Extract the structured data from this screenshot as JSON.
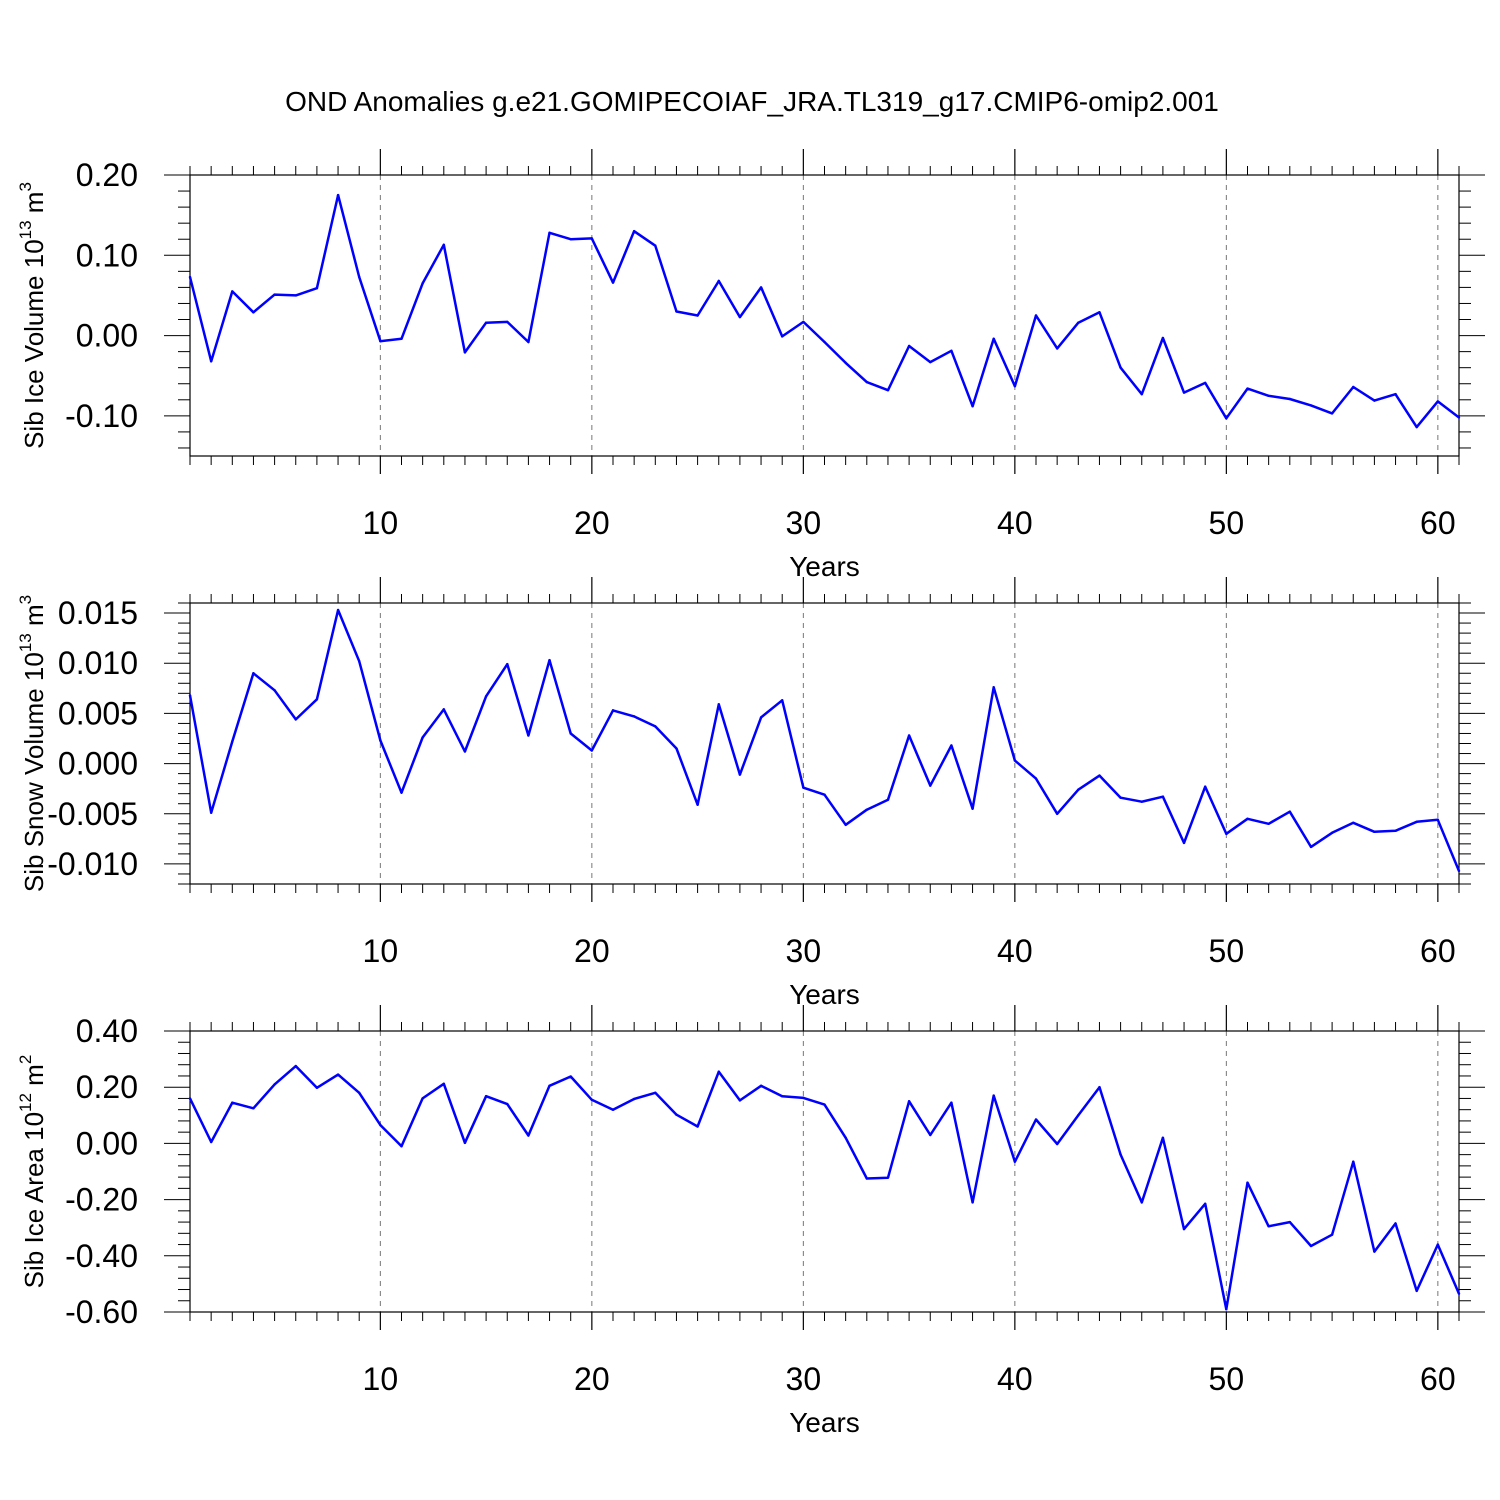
{
  "title": "OND Anomalies g.e21.GOMIPECOIAF_JRA.TL319_g17.CMIP6-omip2.001",
  "line_color": "#0000ff",
  "chart_data": [
    {
      "type": "line",
      "ylabel": "Sib Ice Volume 10",
      "ylabel_exp": "13",
      "ylabel_unit": " m",
      "ylabel_unit_exp": "3",
      "xlabel": "Years",
      "xlim": [
        1,
        61
      ],
      "ylim": [
        -0.15,
        0.2
      ],
      "xticks": [
        10,
        20,
        30,
        40,
        50,
        60
      ],
      "yticks": [
        -0.1,
        0.0,
        0.1,
        0.2
      ],
      "ytick_labels": [
        "-0.10",
        "0.00",
        "0.10",
        "0.20"
      ],
      "grid": "vertical-dashed",
      "x": [
        1,
        2,
        3,
        4,
        5,
        6,
        7,
        8,
        9,
        10,
        11,
        12,
        13,
        14,
        15,
        16,
        17,
        18,
        19,
        20,
        21,
        22,
        23,
        24,
        25,
        26,
        27,
        28,
        29,
        30,
        31,
        32,
        33,
        34,
        35,
        36,
        37,
        38,
        39,
        40,
        41,
        42,
        43,
        44,
        45,
        46,
        47,
        48,
        49,
        50,
        51,
        52,
        53,
        54,
        55,
        56,
        57,
        58,
        59,
        60,
        61
      ],
      "values": [
        0.073,
        -0.032,
        0.055,
        0.029,
        0.051,
        0.05,
        0.059,
        0.175,
        0.073,
        -0.007,
        -0.004,
        0.065,
        0.113,
        -0.021,
        0.016,
        0.017,
        -0.008,
        0.128,
        0.12,
        0.121,
        0.066,
        0.13,
        0.112,
        0.03,
        0.025,
        0.068,
        0.023,
        0.06,
        -0.001,
        0.017,
        -0.008,
        -0.034,
        -0.058,
        -0.068,
        -0.013,
        -0.033,
        -0.019,
        -0.088,
        -0.004,
        -0.063,
        0.025,
        -0.016,
        0.016,
        0.029,
        -0.04,
        -0.073,
        -0.003,
        -0.071,
        -0.059,
        -0.103,
        -0.066,
        -0.075,
        -0.079,
        -0.087,
        -0.097,
        -0.064,
        -0.081,
        -0.073,
        -0.114,
        -0.082,
        -0.102
      ]
    },
    {
      "type": "line",
      "ylabel": "Sib Snow Volume 10",
      "ylabel_exp": "13",
      "ylabel_unit": " m",
      "ylabel_unit_exp": "3",
      "xlabel": "Years",
      "xlim": [
        1,
        61
      ],
      "ylim": [
        -0.012,
        0.016
      ],
      "xticks": [
        10,
        20,
        30,
        40,
        50,
        60
      ],
      "yticks": [
        -0.01,
        -0.005,
        0.0,
        0.005,
        0.01,
        0.015
      ],
      "ytick_labels": [
        "-0.010",
        "-0.005",
        "0.000",
        "0.005",
        "0.010",
        "0.015"
      ],
      "grid": "vertical-dashed",
      "x": [
        1,
        2,
        3,
        4,
        5,
        6,
        7,
        8,
        9,
        10,
        11,
        12,
        13,
        14,
        15,
        16,
        17,
        18,
        19,
        20,
        21,
        22,
        23,
        24,
        25,
        26,
        27,
        28,
        29,
        30,
        31,
        32,
        33,
        34,
        35,
        36,
        37,
        38,
        39,
        40,
        41,
        42,
        43,
        44,
        45,
        46,
        47,
        48,
        49,
        50,
        51,
        52,
        53,
        54,
        55,
        56,
        57,
        58,
        59,
        60,
        61
      ],
      "values": [
        0.0068,
        -0.0049,
        0.0022,
        0.009,
        0.0073,
        0.0044,
        0.0064,
        0.0153,
        0.0102,
        0.0023,
        -0.0029,
        0.0026,
        0.0054,
        0.0012,
        0.0067,
        0.0099,
        0.0028,
        0.0103,
        0.003,
        0.0013,
        0.0053,
        0.0047,
        0.0037,
        0.0015,
        -0.0041,
        0.0059,
        -0.0011,
        0.0046,
        0.0063,
        -0.0024,
        -0.0031,
        -0.0061,
        -0.0046,
        -0.0036,
        0.0028,
        -0.0022,
        0.0018,
        -0.0045,
        0.0076,
        0.0003,
        -0.0015,
        -0.005,
        -0.0026,
        -0.0012,
        -0.0034,
        -0.0038,
        -0.0033,
        -0.0079,
        -0.0023,
        -0.007,
        -0.0055,
        -0.006,
        -0.0048,
        -0.0083,
        -0.0069,
        -0.0059,
        -0.0068,
        -0.0067,
        -0.0058,
        -0.0056,
        -0.0107
      ]
    },
    {
      "type": "line",
      "ylabel": "Sib Ice Area 10",
      "ylabel_exp": "12",
      "ylabel_unit": " m",
      "ylabel_unit_exp": "2",
      "xlabel": "Years",
      "xlim": [
        1,
        61
      ],
      "ylim": [
        -0.6,
        0.4
      ],
      "xticks": [
        10,
        20,
        30,
        40,
        50,
        60
      ],
      "yticks": [
        -0.6,
        -0.4,
        -0.2,
        0.0,
        0.2,
        0.4
      ],
      "ytick_labels": [
        "-0.60",
        "-0.40",
        "-0.20",
        "0.00",
        "0.20",
        "0.40"
      ],
      "grid": "vertical-dashed",
      "x": [
        1,
        2,
        3,
        4,
        5,
        6,
        7,
        8,
        9,
        10,
        11,
        12,
        13,
        14,
        15,
        16,
        17,
        18,
        19,
        20,
        21,
        22,
        23,
        24,
        25,
        26,
        27,
        28,
        29,
        30,
        31,
        32,
        33,
        34,
        35,
        36,
        37,
        38,
        39,
        40,
        41,
        42,
        43,
        44,
        45,
        46,
        47,
        48,
        49,
        50,
        51,
        52,
        53,
        54,
        55,
        56,
        57,
        58,
        59,
        60,
        61
      ],
      "values": [
        0.16,
        0.005,
        0.145,
        0.125,
        0.21,
        0.275,
        0.198,
        0.245,
        0.18,
        0.065,
        -0.01,
        0.16,
        0.212,
        0.002,
        0.168,
        0.14,
        0.028,
        0.205,
        0.238,
        0.155,
        0.12,
        0.158,
        0.18,
        0.102,
        0.06,
        0.255,
        0.153,
        0.205,
        0.168,
        0.162,
        0.138,
        0.02,
        -0.125,
        -0.122,
        0.15,
        0.03,
        0.145,
        -0.21,
        0.17,
        -0.065,
        0.085,
        -0.002,
        0.1,
        0.2,
        -0.04,
        -0.21,
        0.02,
        -0.305,
        -0.215,
        -0.59,
        -0.14,
        -0.295,
        -0.28,
        -0.365,
        -0.325,
        -0.065,
        -0.385,
        -0.285,
        -0.525,
        -0.36,
        -0.535
      ]
    }
  ]
}
